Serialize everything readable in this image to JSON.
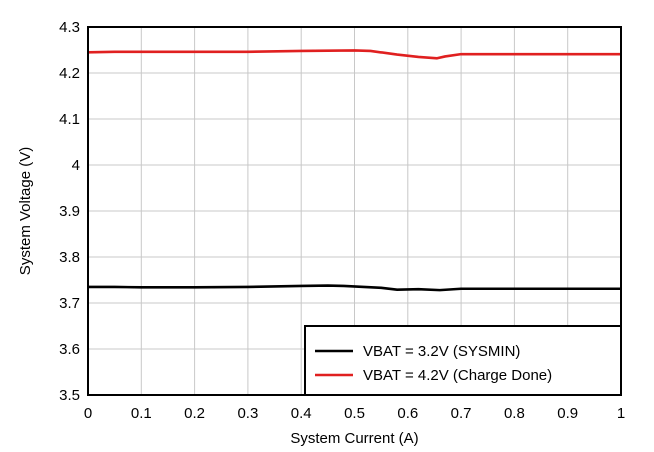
{
  "chart_data": {
    "type": "line",
    "title": "",
    "xlabel": "System Current (A)",
    "ylabel": "System Voltage (V)",
    "xlim": [
      0,
      1
    ],
    "ylim": [
      3.5,
      4.3
    ],
    "x_ticks": [
      0,
      0.1,
      0.2,
      0.3,
      0.4,
      0.5,
      0.6,
      0.7,
      0.8,
      0.9,
      1
    ],
    "x_tick_labels": [
      "0",
      "0.1",
      "0.2",
      "0.3",
      "0.4",
      "0.5",
      "0.6",
      "0.7",
      "0.8",
      "0.9",
      "1"
    ],
    "y_ticks": [
      3.5,
      3.6,
      3.7,
      3.8,
      3.9,
      4.0,
      4.1,
      4.2,
      4.3
    ],
    "y_tick_labels": [
      "3.5",
      "3.6",
      "3.7",
      "3.8",
      "3.9",
      "4",
      "4.1",
      "4.2",
      "4.3"
    ],
    "grid": true,
    "legend_position": "bottom-right",
    "series": [
      {
        "name": "VBAT = 3.2V (SYSMIN)",
        "color": "#000000",
        "x": [
          0,
          0.05,
          0.1,
          0.2,
          0.3,
          0.4,
          0.45,
          0.48,
          0.55,
          0.58,
          0.62,
          0.66,
          0.7,
          0.8,
          0.9,
          1.0
        ],
        "y": [
          3.735,
          3.735,
          3.734,
          3.734,
          3.735,
          3.737,
          3.738,
          3.737,
          3.733,
          3.729,
          3.73,
          3.728,
          3.731,
          3.731,
          3.731,
          3.731
        ]
      },
      {
        "name": "VBAT = 4.2V (Charge Done)",
        "color": "#e02020",
        "x": [
          0,
          0.05,
          0.1,
          0.2,
          0.3,
          0.4,
          0.5,
          0.53,
          0.58,
          0.62,
          0.655,
          0.67,
          0.7,
          0.8,
          0.9,
          1.0
        ],
        "y": [
          4.245,
          4.246,
          4.246,
          4.246,
          4.246,
          4.248,
          4.249,
          4.248,
          4.24,
          4.235,
          4.232,
          4.236,
          4.241,
          4.241,
          4.241,
          4.241
        ]
      }
    ]
  }
}
